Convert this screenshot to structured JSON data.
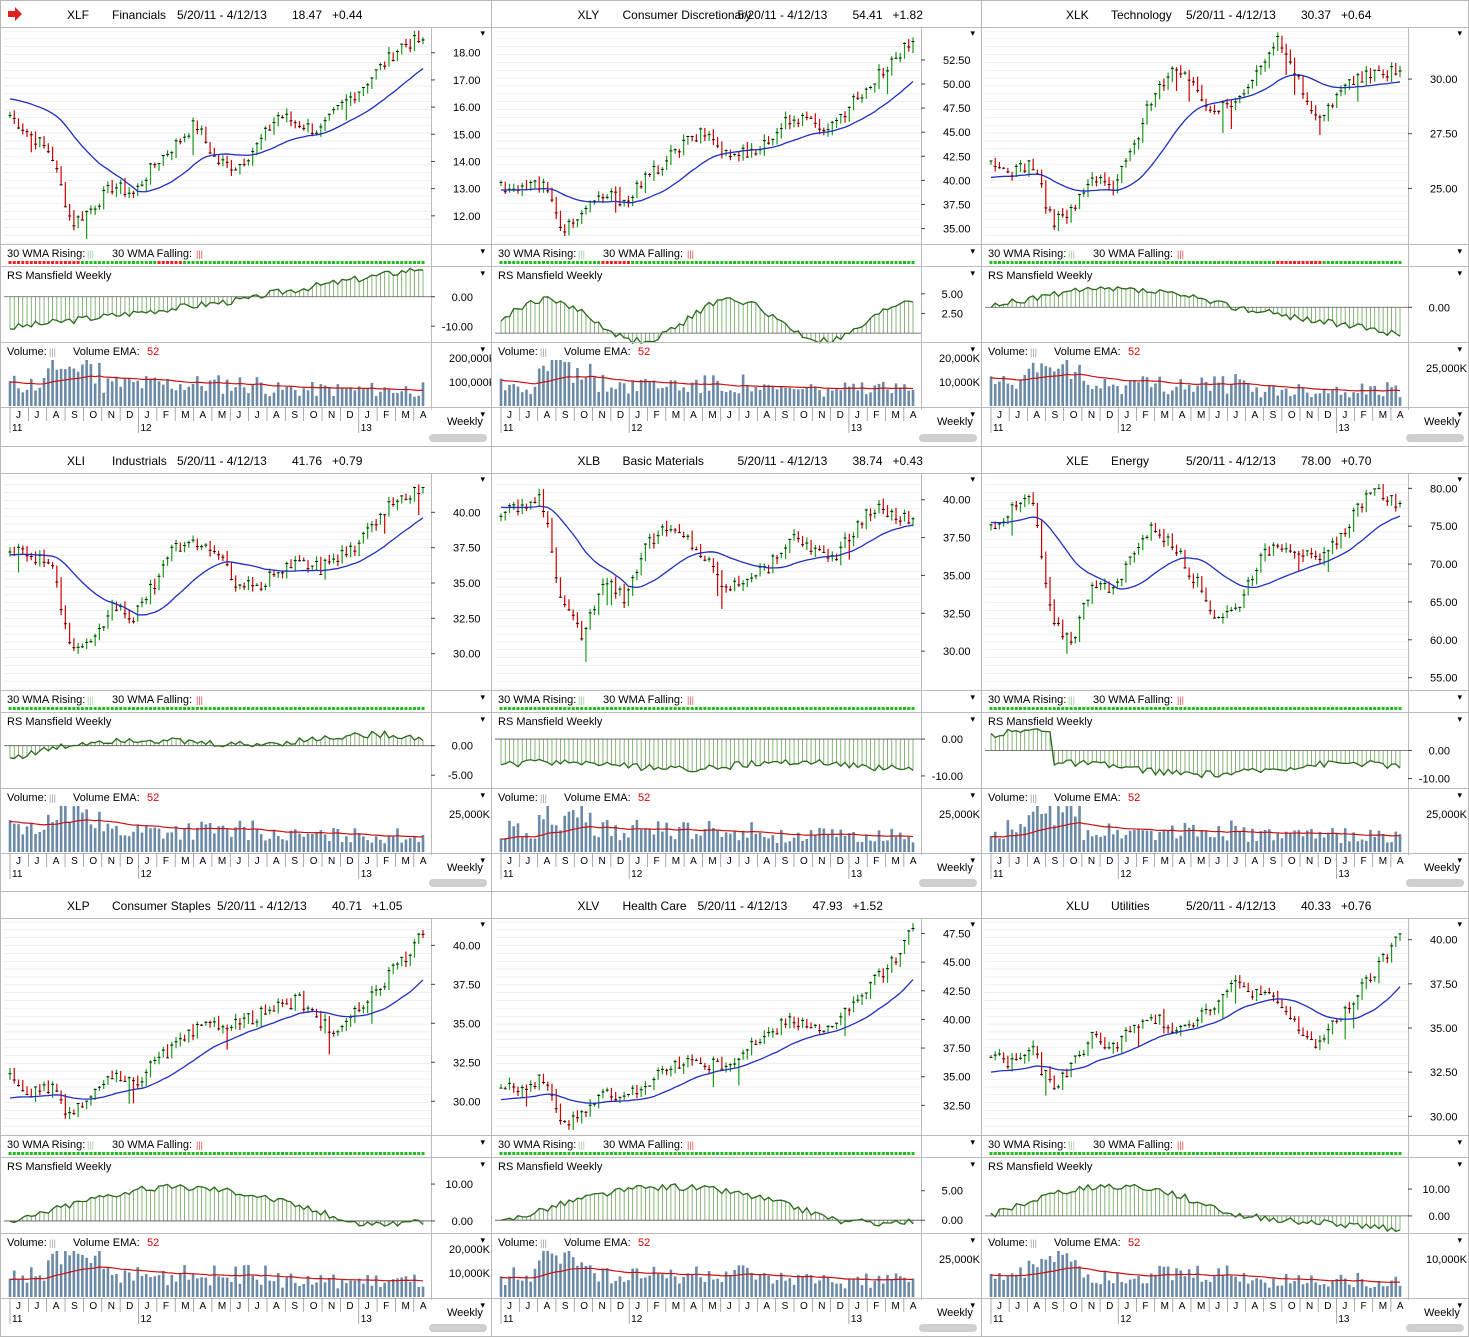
{
  "page": {
    "arrow_icon": "red-arrow-icon",
    "colors": {
      "up": "#1a9a1a",
      "down": "#d00000",
      "wma": "#1f2fbf",
      "rs": "#2a6a1a",
      "rs_fill": "#6aa05a",
      "volbar": "#6b8aa8",
      "vol_ema": "#cc1010",
      "grid": "#e4e4e4",
      "axis_bg": "#ffffff",
      "wma_rising": "#22bb22",
      "wma_falling": "#ee2222"
    },
    "labels": {
      "wma_rising": "30 WMA Rising:",
      "wma_falling": "30 WMA Falling:",
      "bars_glyph": "|||",
      "rs_title": "RS Mansfield Weekly",
      "volume": "Volume:",
      "volume_ema": "Volume EMA:",
      "volume_ema_period": "52",
      "period": "Weekly",
      "months": [
        "J",
        "J",
        "A",
        "S",
        "O",
        "N",
        "D",
        "J",
        "F",
        "M",
        "A",
        "M",
        "J",
        "J",
        "A",
        "S",
        "O",
        "N",
        "D",
        "J",
        "F",
        "M",
        "A"
      ],
      "years": [
        "11",
        "12",
        "13"
      ],
      "menu_glyph": "▾"
    }
  },
  "chart_data": [
    {
      "type": "candlestick",
      "symbol": "XLF",
      "name": "Financials",
      "range": "5/20/11 - 4/12/13",
      "last": "18.47",
      "change": "+0.44",
      "price_ticks": [
        "18.00",
        "17.00",
        "16.00",
        "15.00",
        "14.00",
        "13.00",
        "12.00"
      ],
      "ylim": [
        11.0,
        18.8
      ],
      "anchors": [
        15.7,
        15.0,
        14.3,
        11.7,
        12.3,
        13.1,
        12.8,
        13.9,
        14.6,
        15.4,
        14.0,
        13.8,
        14.6,
        15.7,
        15.4,
        15.1,
        16.0,
        16.7,
        17.5,
        18.3,
        18.47
      ],
      "wma_start": 16.3,
      "wma_end": 17.5,
      "rs_ticks": [
        "0.00",
        "-10.00"
      ],
      "rs_ylim": [
        -15,
        5
      ],
      "rs_pattern": "neg-then-pos",
      "vol_ticks": [
        "200,000K",
        "100,000K"
      ],
      "wma_pattern": "RRRRRRRRRRRRRRGGGGGGGGGGGGGGGGRRRRRGGGGGGGGGGGGGGGGGGGGGGGGGGGGGGGGGGGGGGGGGGGGGGGGGG"
    },
    {
      "type": "candlestick",
      "symbol": "XLY",
      "name": "Consumer Discretionary",
      "range": "5/20/11 - 4/12/13",
      "last": "54.41",
      "change": "+1.82",
      "price_ticks": [
        "52.50",
        "50.00",
        "47.50",
        "45.00",
        "42.50",
        "40.00",
        "37.50",
        "35.00"
      ],
      "ylim": [
        33.5,
        55.5
      ],
      "anchors": [
        39.5,
        39.0,
        39.8,
        35.0,
        36.5,
        38.5,
        38.0,
        40.0,
        42.0,
        44.0,
        45.0,
        42.5,
        43.0,
        44.0,
        46.5,
        46.0,
        45.5,
        48.0,
        50.0,
        52.5,
        54.41
      ],
      "wma_start": 39.0,
      "wma_end": 50.5,
      "rs_ticks": [
        "5.00",
        "2.50"
      ],
      "rs_ylim": [
        -1,
        6.5
      ],
      "rs_pattern": "positive",
      "vol_ticks": [
        "20,000K",
        "10,000K"
      ],
      "wma_pattern": "GGGGGGGGGGGGGGGGGGGGGRRRRRRGGGGGGGGGGGGGGGGGGGGGGGGGGGGGGGGGGGGGGGGGGGGGGGGGGGGGGGGGGG"
    },
    {
      "type": "candlestick",
      "symbol": "XLK",
      "name": "Technology",
      "range": "5/20/11 - 4/12/13",
      "last": "30.37",
      "change": "+0.64",
      "price_ticks": [
        "30.00",
        "27.50",
        "25.00"
      ],
      "ylim": [
        22.5,
        32.2
      ],
      "anchors": [
        26.0,
        25.8,
        26.2,
        23.5,
        24.0,
        25.5,
        25.0,
        27.0,
        29.5,
        30.5,
        29.5,
        28.5,
        29.0,
        30.5,
        31.8,
        30.0,
        28.0,
        29.5,
        30.0,
        30.3,
        30.37
      ],
      "wma_start": 25.5,
      "wma_end": 29.5,
      "rs_ticks": [
        "0.00"
      ],
      "rs_ylim": [
        -8,
        6
      ],
      "rs_pattern": "pos-then-neg",
      "vol_ticks": [
        "25,000K"
      ],
      "wma_pattern": "GGGGGGGGGGGGGGGGGGGGGGGGGGGGGGGGGGGGGGGGGGGGGGGGGGGGGGGGGGGRRRRRRRRRRGGGGGGGGGGGGGGGGG"
    },
    {
      "type": "candlestick",
      "symbol": "XLI",
      "name": "Industrials",
      "range": "5/20/11 - 4/12/13",
      "last": "41.76",
      "change": "+0.79",
      "price_ticks": [
        "40.00",
        "37.50",
        "35.00",
        "32.50",
        "30.00"
      ],
      "ylim": [
        27.5,
        42.5
      ],
      "anchors": [
        37.5,
        37.0,
        36.5,
        30.0,
        30.5,
        33.5,
        32.5,
        35.0,
        37.5,
        38.0,
        37.0,
        35.0,
        34.5,
        36.0,
        36.5,
        36.0,
        37.0,
        38.0,
        40.0,
        41.0,
        41.76
      ],
      "wma_start": 37.0,
      "wma_end": 39.8,
      "rs_ticks": [
        "0.00",
        "-5.00"
      ],
      "rs_ylim": [
        -7,
        3
      ],
      "rs_pattern": "mixed",
      "vol_ticks": [
        "25,000K"
      ],
      "wma_pattern": "GGGGGGGGGGGGGGGGGGGGGGGGGGGGGGGGGGGGGGGGGGGGGGGGGGGGGGGGGGGGGGGGGGGGGGGGGGGGGGGGGGGGGG"
    },
    {
      "type": "candlestick",
      "symbol": "XLB",
      "name": "Basic Materials",
      "range": "5/20/11 - 4/12/13",
      "last": "38.74",
      "change": "+0.43",
      "price_ticks": [
        "40.00",
        "37.50",
        "35.00",
        "32.50",
        "30.00"
      ],
      "ylim": [
        27.5,
        41.5
      ],
      "anchors": [
        39.0,
        39.5,
        40.0,
        33.0,
        31.0,
        35.0,
        33.5,
        37.0,
        38.0,
        37.5,
        36.0,
        34.0,
        35.0,
        35.5,
        37.5,
        37.0,
        36.0,
        37.5,
        39.5,
        39.0,
        38.74
      ],
      "wma_start": 39.5,
      "wma_end": 38.5,
      "rs_ticks": [
        "0.00",
        "-10.00"
      ],
      "rs_ylim": [
        -13,
        3
      ],
      "rs_pattern": "negative",
      "vol_ticks": [
        "25,000K"
      ],
      "wma_pattern": "GGGGGGGGGGGGGGGGGGGGGGGGGGGGGGGGGGGGGGGGGGGGGGGGGGGGGGGGGGGGGGGGGGGGGGGGGGGGGGGGGGGGGG"
    },
    {
      "type": "candlestick",
      "symbol": "XLE",
      "name": "Energy",
      "range": "5/20/11 - 4/12/13",
      "last": "78.00",
      "change": "+0.70",
      "price_ticks": [
        "80.00",
        "75.00",
        "70.00",
        "65.00",
        "60.00",
        "55.00"
      ],
      "ylim": [
        53.5,
        81.5
      ],
      "anchors": [
        75.0,
        77.0,
        79.0,
        62.0,
        60.0,
        68.0,
        66.0,
        72.0,
        75.0,
        72.0,
        68.0,
        63.0,
        64.0,
        70.0,
        73.0,
        72.0,
        70.0,
        73.0,
        78.0,
        79.5,
        78.0
      ],
      "wma_start": 75.5,
      "wma_end": 76.0,
      "rs_ticks": [
        "0.00",
        "-10.00"
      ],
      "rs_ylim": [
        -13,
        8
      ],
      "rs_pattern": "mixed-neg",
      "vol_ticks": [
        "25,000K"
      ],
      "wma_pattern": "GGGGGGGGGGGGGGGGGGGGGGGGGGGGGGGGGGGGGGGGGGGGGGGGGGGGGGGGGGGGGGGGGGGGGGGGGGGGGGGGGGGGGGG"
    },
    {
      "type": "candlestick",
      "symbol": "XLP",
      "name": "Consumer Staples",
      "range": "5/20/11 - 4/12/13",
      "last": "40.71",
      "change": "+1.05",
      "price_ticks": [
        "40.00",
        "37.50",
        "35.00",
        "32.50",
        "30.00"
      ],
      "ylim": [
        27.9,
        41.5
      ],
      "anchors": [
        31.5,
        30.5,
        30.8,
        29.0,
        30.5,
        31.5,
        31.0,
        32.5,
        33.5,
        34.5,
        35.0,
        35.0,
        35.5,
        36.0,
        36.5,
        35.0,
        34.5,
        36.0,
        37.5,
        39.0,
        40.71
      ],
      "wma_start": 30.2,
      "wma_end": 37.5,
      "rs_ticks": [
        "10.00",
        "0.00"
      ],
      "rs_ylim": [
        -3,
        13
      ],
      "rs_pattern": "positive-fade",
      "vol_ticks": [
        "20,000K",
        "10,000K"
      ],
      "wma_pattern": "GGGGGGGGGGGGGGGGGGGGGGGGGGGGGGGGGGGGGGGGGGGGGGGGGGGGGGGGGGGGGGGGGGGGGGGGGGGGGGGGGGGGG"
    },
    {
      "type": "candlestick",
      "symbol": "XLV",
      "name": "Health Care",
      "range": "5/20/11 - 4/12/13",
      "last": "47.93",
      "change": "+1.52",
      "price_ticks": [
        "47.50",
        "45.00",
        "42.50",
        "40.00",
        "37.50",
        "35.00",
        "32.50"
      ],
      "ylim": [
        30.0,
        48.5
      ],
      "anchors": [
        34.5,
        34.0,
        34.8,
        31.0,
        32.0,
        33.5,
        33.0,
        34.5,
        35.5,
        36.5,
        36.0,
        36.0,
        37.5,
        38.5,
        40.0,
        39.5,
        39.0,
        41.0,
        43.0,
        45.0,
        47.93
      ],
      "wma_start": 33.0,
      "wma_end": 43.0,
      "rs_ticks": [
        "5.00",
        "0.00"
      ],
      "rs_ylim": [
        -2,
        8
      ],
      "rs_pattern": "positive-fade",
      "vol_ticks": [
        "25,000K"
      ],
      "wma_pattern": "GGGGGGGGGGGGGGGGGGGGGGGGGGGGGGGGGGGGGGGGGGGGGGGGGGGGGGGGGGGGGGGGGGGGGGGGGGGGGGGGGGGGGG"
    },
    {
      "type": "candlestick",
      "symbol": "XLU",
      "name": "Utilities",
      "range": "5/20/11 - 4/12/13",
      "last": "40.33",
      "change": "+0.76",
      "price_ticks": [
        "40.00",
        "37.50",
        "35.00",
        "32.50",
        "30.00"
      ],
      "ylim": [
        29.0,
        41.0
      ],
      "anchors": [
        33.5,
        33.0,
        33.8,
        31.5,
        33.0,
        34.5,
        34.0,
        35.0,
        35.5,
        35.0,
        35.5,
        36.5,
        37.5,
        37.0,
        36.5,
        35.0,
        34.0,
        35.5,
        37.0,
        38.5,
        40.33
      ],
      "wma_start": 32.5,
      "wma_end": 37.0,
      "rs_ticks": [
        "10.00",
        "0.00"
      ],
      "rs_ylim": [
        -6,
        16
      ],
      "rs_pattern": "pos-then-neg",
      "vol_ticks": [
        "10,000K"
      ],
      "wma_pattern": "GGGGGGGGGGGGGGGGGGGGGGGGGGGGGGGGGGGGGGGGGGGGGGGGGGGGGGGGGGGGGGGGGGGGGGGGGGGGGGGGGGGGGG"
    }
  ]
}
